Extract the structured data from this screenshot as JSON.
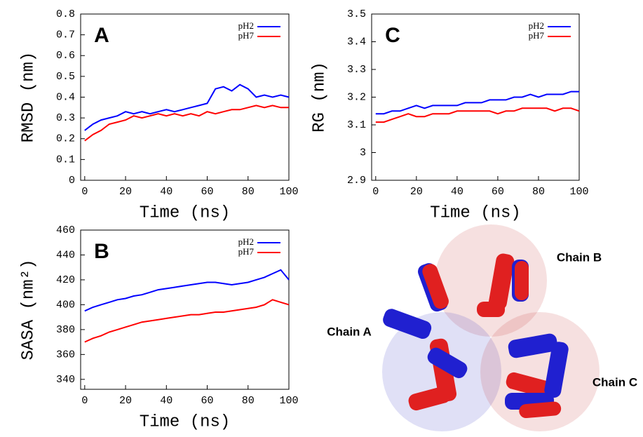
{
  "chart_data": [
    {
      "type": "line",
      "label": "A",
      "ylabel": "RMSD (nm)",
      "xlabel": "Time (ns)",
      "x": [
        0,
        4,
        8,
        12,
        16,
        20,
        24,
        28,
        32,
        36,
        40,
        44,
        48,
        52,
        56,
        60,
        64,
        68,
        72,
        76,
        80,
        84,
        88,
        92,
        96,
        100
      ],
      "xlim": [
        -2,
        100
      ],
      "xticks": [
        0,
        20,
        40,
        60,
        80,
        100
      ],
      "ylim": [
        0,
        0.8
      ],
      "yticks": [
        0,
        0.1,
        0.2,
        0.3,
        0.4,
        0.5,
        0.6,
        0.7,
        0.8
      ],
      "series": [
        {
          "name": "pH2",
          "color": "#0000ff",
          "values": [
            0.24,
            0.27,
            0.29,
            0.3,
            0.31,
            0.33,
            0.32,
            0.33,
            0.32,
            0.33,
            0.34,
            0.33,
            0.34,
            0.35,
            0.36,
            0.37,
            0.44,
            0.45,
            0.43,
            0.46,
            0.44,
            0.4,
            0.41,
            0.4,
            0.41,
            0.4
          ]
        },
        {
          "name": "pH7",
          "color": "#ff0000",
          "values": [
            0.19,
            0.22,
            0.24,
            0.27,
            0.28,
            0.29,
            0.31,
            0.3,
            0.31,
            0.32,
            0.31,
            0.32,
            0.31,
            0.32,
            0.31,
            0.33,
            0.32,
            0.33,
            0.34,
            0.34,
            0.35,
            0.36,
            0.35,
            0.36,
            0.35,
            0.35
          ]
        }
      ]
    },
    {
      "type": "line",
      "label": "C",
      "ylabel": "RG (nm)",
      "xlabel": "Time (ns)",
      "x": [
        0,
        4,
        8,
        12,
        16,
        20,
        24,
        28,
        32,
        36,
        40,
        44,
        48,
        52,
        56,
        60,
        64,
        68,
        72,
        76,
        80,
        84,
        88,
        92,
        96,
        100
      ],
      "xlim": [
        -2,
        100
      ],
      "xticks": [
        0,
        20,
        40,
        60,
        80,
        100
      ],
      "ylim": [
        2.9,
        3.5
      ],
      "yticks": [
        2.9,
        3,
        3.1,
        3.2,
        3.3,
        3.4,
        3.5
      ],
      "series": [
        {
          "name": "pH2",
          "color": "#0000ff",
          "values": [
            3.14,
            3.14,
            3.15,
            3.15,
            3.16,
            3.17,
            3.16,
            3.17,
            3.17,
            3.17,
            3.17,
            3.18,
            3.18,
            3.18,
            3.19,
            3.19,
            3.19,
            3.2,
            3.2,
            3.21,
            3.2,
            3.21,
            3.21,
            3.21,
            3.22,
            3.22
          ]
        },
        {
          "name": "pH7",
          "color": "#ff0000",
          "values": [
            3.11,
            3.11,
            3.12,
            3.13,
            3.14,
            3.13,
            3.13,
            3.14,
            3.14,
            3.14,
            3.15,
            3.15,
            3.15,
            3.15,
            3.15,
            3.14,
            3.15,
            3.15,
            3.16,
            3.16,
            3.16,
            3.16,
            3.15,
            3.16,
            3.16,
            3.15
          ]
        }
      ]
    },
    {
      "type": "line",
      "label": "B",
      "ylabel": "SASA (nm²)",
      "xlabel": "Time (ns)",
      "x": [
        0,
        4,
        8,
        12,
        16,
        20,
        24,
        28,
        32,
        36,
        40,
        44,
        48,
        52,
        56,
        60,
        64,
        68,
        72,
        76,
        80,
        84,
        88,
        92,
        96,
        100
      ],
      "xlim": [
        -2,
        100
      ],
      "xticks": [
        0,
        20,
        40,
        60,
        80,
        100
      ],
      "ylim": [
        332,
        460
      ],
      "yticks": [
        340,
        360,
        380,
        400,
        420,
        440,
        460
      ],
      "series": [
        {
          "name": "pH2",
          "color": "#0000ff",
          "values": [
            395,
            398,
            400,
            402,
            404,
            405,
            407,
            408,
            410,
            412,
            413,
            414,
            415,
            416,
            417,
            418,
            418,
            417,
            416,
            417,
            418,
            420,
            422,
            425,
            428,
            420
          ]
        },
        {
          "name": "pH7",
          "color": "#ff0000",
          "values": [
            370,
            373,
            375,
            378,
            380,
            382,
            384,
            386,
            387,
            388,
            389,
            390,
            391,
            392,
            392,
            393,
            394,
            394,
            395,
            396,
            397,
            398,
            400,
            404,
            402,
            400
          ]
        }
      ]
    }
  ],
  "structure_labels": [
    "Chain B",
    "Chain A",
    "Chain C"
  ]
}
